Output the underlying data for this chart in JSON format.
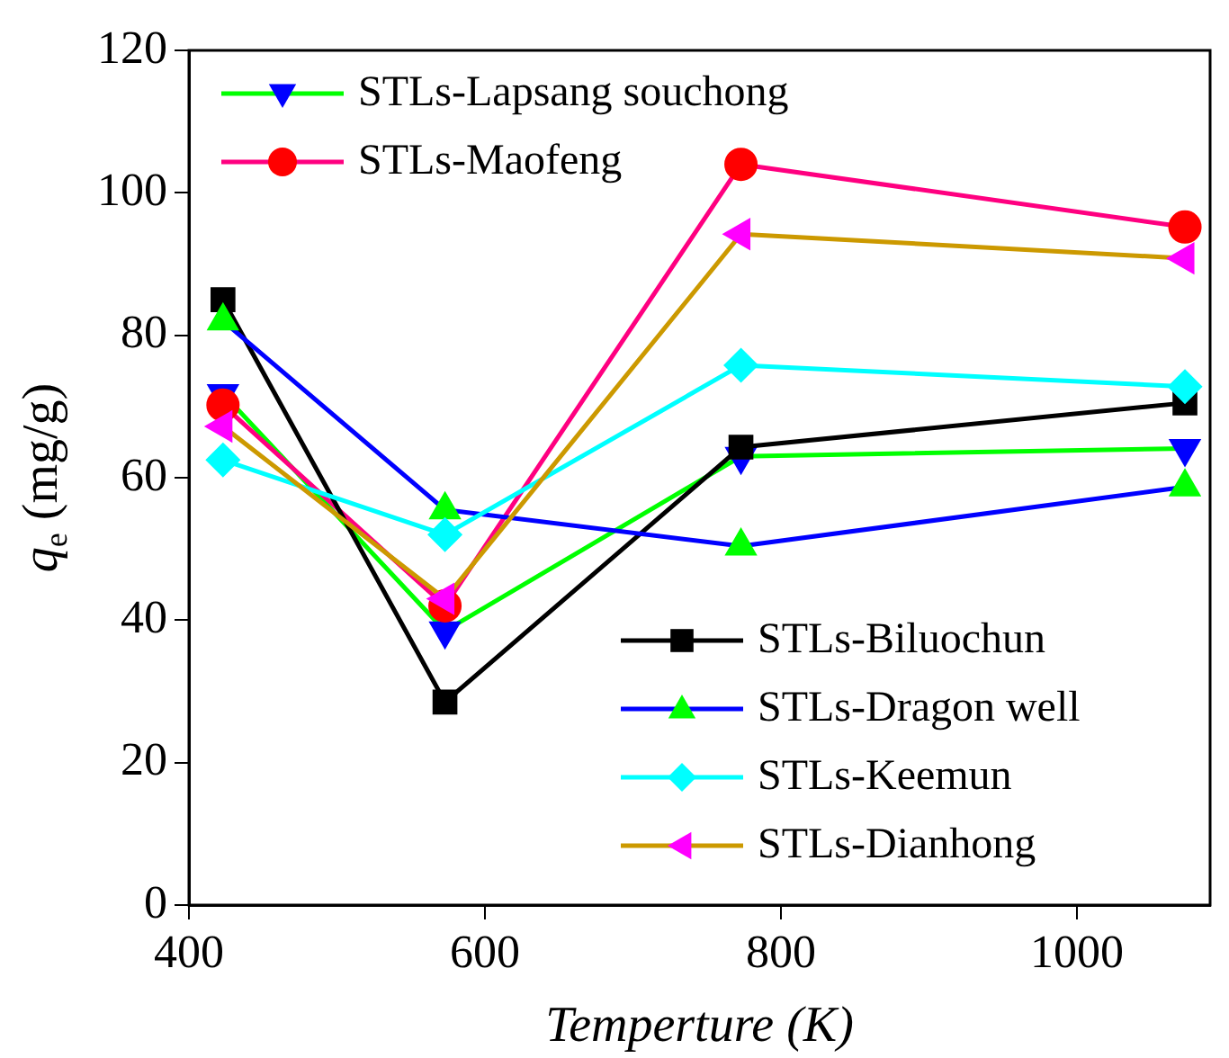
{
  "chart_data": {
    "type": "line",
    "xlabel": "Temperture (K)",
    "ylabel": "q$_{e}$ (mg/g)",
    "x": [
      423,
      573,
      773,
      1073
    ],
    "xlim": [
      400,
      1090
    ],
    "xticks": [
      400,
      600,
      800,
      1000
    ],
    "ylim": [
      0,
      120
    ],
    "yticks": [
      0,
      20,
      40,
      60,
      80,
      100,
      120
    ],
    "grid": false,
    "legend": "top left",
    "series": [
      {
        "name": "STLs-Lapsang souchong",
        "color": "#00ff00",
        "colors": [
          "#0000ff",
          "#0000ff",
          "#0000ff",
          "#0000ff"
        ],
        "marker": "triangle-down",
        "values": [
          71.8,
          38.5,
          63,
          64.1
        ]
      },
      {
        "name": "STLs-Maofeng",
        "color": "#ff0080",
        "colors": [
          "#ff0000",
          "#ff0000",
          "#ff0000",
          "#ff0000"
        ],
        "marker": "circle",
        "values": [
          70.2,
          42,
          104,
          95.2
        ]
      },
      {
        "name": "STLs-Biluochun",
        "color": "#000000",
        "colors": [
          "#000000",
          "#000000",
          "#000000",
          "#000000"
        ],
        "marker": "square",
        "values": [
          85,
          28.5,
          64.3,
          70.5
        ]
      },
      {
        "name": "STLs-Dragon well",
        "color": "#0000ff",
        "colors": [
          "#00ff00",
          "#00ff00",
          "#00ff00",
          "#00ff00"
        ],
        "marker": "triangle",
        "values": [
          82,
          55.5,
          50.4,
          58.7
        ]
      },
      {
        "name": "STLs-Keemun",
        "color": "#00ffff",
        "colors": [
          "#00ffff",
          "#00ffff",
          "#00ffff",
          "#00ffff"
        ],
        "marker": "diamond",
        "values": [
          62.5,
          52,
          75.8,
          72.8
        ]
      },
      {
        "name": "STLs-Dianhong",
        "color": "#cc9900",
        "colors": [
          "#ff00ff",
          "#ff00ff",
          "#ff00ff",
          "#ff00ff"
        ],
        "marker": "triangle-left",
        "values": [
          67.2,
          43,
          94.2,
          90.8
        ]
      }
    ]
  }
}
